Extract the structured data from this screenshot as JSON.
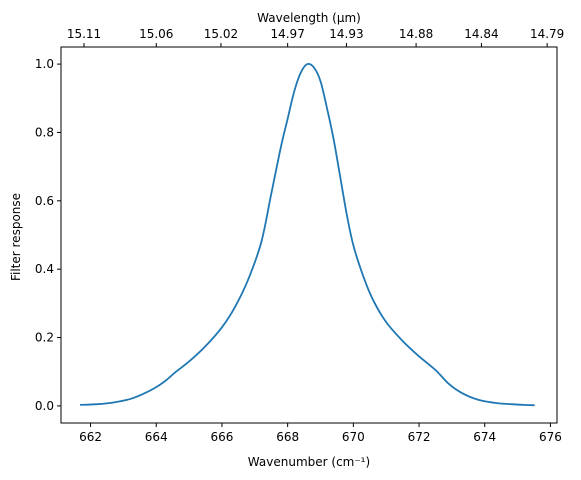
{
  "chart_data": {
    "type": "line",
    "title": "",
    "xlabel": "Wavenumber (cm⁻¹)",
    "ylabel": "Filter response",
    "top_xlabel": "Wavelength (μm)",
    "xlim": [
      661.1,
      676.2
    ],
    "ylim": [
      -0.05,
      1.05
    ],
    "x_ticks": [
      662,
      664,
      666,
      668,
      670,
      672,
      674,
      676
    ],
    "y_ticks": [
      0.0,
      0.2,
      0.4,
      0.6,
      0.8,
      1.0
    ],
    "y_tick_labels": [
      "0.0",
      "0.2",
      "0.4",
      "0.6",
      "0.8",
      "1.0"
    ],
    "top_ticks": [
      {
        "label": "15.11",
        "wavenumber": 661.8
      },
      {
        "label": "15.06",
        "wavenumber": 664.0
      },
      {
        "label": "15.02",
        "wavenumber": 665.97
      },
      {
        "label": "14.97",
        "wavenumber": 668.0
      },
      {
        "label": "14.93",
        "wavenumber": 669.79
      },
      {
        "label": "14.88",
        "wavenumber": 671.91
      },
      {
        "label": "14.84",
        "wavenumber": 673.9
      },
      {
        "label": "14.79",
        "wavenumber": 675.9
      }
    ],
    "grid": false,
    "series": [
      {
        "color": "#1f77b4",
        "x": [
          661.7,
          662.2,
          662.7,
          663.2,
          663.6,
          664.0,
          664.3,
          664.6,
          665.0,
          665.5,
          666.0,
          666.4,
          666.8,
          667.2,
          667.5,
          667.8,
          668.0,
          668.2,
          668.4,
          668.6,
          668.8,
          669.0,
          669.2,
          669.4,
          669.6,
          669.8,
          670.0,
          670.3,
          670.6,
          671.0,
          671.5,
          672.0,
          672.5,
          672.9,
          673.3,
          673.8,
          674.3,
          674.8,
          675.2,
          675.5
        ],
        "y": [
          0.003,
          0.005,
          0.01,
          0.02,
          0.035,
          0.055,
          0.075,
          0.1,
          0.13,
          0.175,
          0.23,
          0.29,
          0.37,
          0.48,
          0.62,
          0.76,
          0.84,
          0.92,
          0.975,
          1.0,
          0.99,
          0.95,
          0.87,
          0.78,
          0.67,
          0.56,
          0.47,
          0.38,
          0.31,
          0.245,
          0.19,
          0.145,
          0.105,
          0.065,
          0.038,
          0.018,
          0.009,
          0.005,
          0.003,
          0.002
        ]
      }
    ]
  }
}
